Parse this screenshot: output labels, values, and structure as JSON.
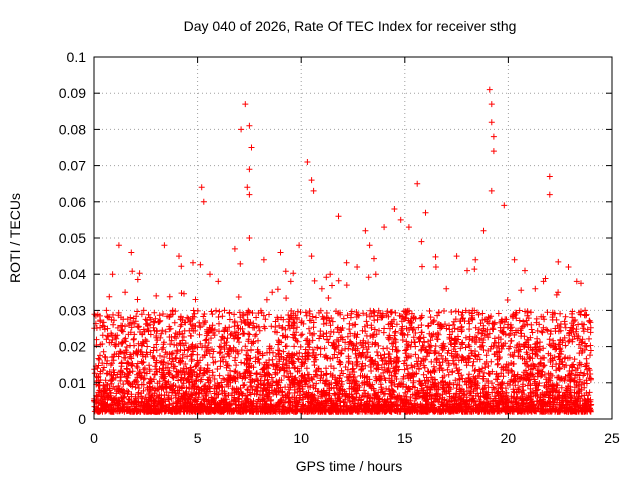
{
  "chart_data": {
    "type": "scatter",
    "title": "Day 040 of 2026, Rate Of TEC Index for receiver sthg",
    "xlabel": "GPS time / hours",
    "ylabel": "ROTI / TECUs",
    "xlim": [
      0,
      25
    ],
    "ylim": [
      0,
      0.1
    ],
    "xticks": [
      "0",
      "5",
      "10",
      "15",
      "20",
      "25"
    ],
    "yticks": [
      "0",
      "0.01",
      "0.02",
      "0.03",
      "0.04",
      "0.05",
      "0.06",
      "0.07",
      "0.08",
      "0.09",
      "0.1"
    ],
    "grid": true,
    "marker": "+",
    "color": "#ff0000",
    "dense_band": {
      "description_free": true,
      "x_range": [
        0,
        24
      ],
      "typical_y_range": [
        0.002,
        0.03
      ]
    },
    "series": [
      {
        "name": "ROTI",
        "x": [
          0.3,
          0.6,
          0.9,
          1.2,
          1.5,
          1.8,
          2.1,
          2.4,
          2.7,
          3.0,
          3.4,
          3.8,
          4.1,
          4.5,
          4.9,
          5.2,
          5.3,
          5.6,
          6.0,
          6.3,
          6.8,
          7.1,
          7.3,
          7.5,
          7.6,
          7.5,
          7.4,
          7.5,
          7.5,
          8.2,
          8.6,
          9.0,
          9.5,
          9.9,
          10.3,
          10.5,
          10.6,
          10.5,
          11.0,
          11.4,
          11.8,
          12.2,
          12.7,
          13.1,
          13.3,
          13.6,
          14.0,
          14.5,
          14.8,
          15.2,
          15.6,
          15.8,
          16.0,
          16.5,
          17.0,
          17.5,
          18.0,
          18.4,
          18.8,
          19.1,
          19.2,
          19.2,
          19.3,
          19.3,
          19.2,
          19.8,
          20.3,
          20.8,
          21.3,
          21.7,
          22.0,
          22.0,
          22.4,
          22.9,
          23.3,
          23.7,
          23.9
        ],
        "y": [
          0.027,
          0.03,
          0.04,
          0.048,
          0.035,
          0.046,
          0.033,
          0.03,
          0.028,
          0.034,
          0.048,
          0.03,
          0.045,
          0.028,
          0.033,
          0.064,
          0.06,
          0.04,
          0.038,
          0.03,
          0.047,
          0.08,
          0.087,
          0.081,
          0.075,
          0.069,
          0.064,
          0.062,
          0.05,
          0.044,
          0.035,
          0.046,
          0.038,
          0.048,
          0.071,
          0.066,
          0.063,
          0.045,
          0.036,
          0.04,
          0.056,
          0.037,
          0.042,
          0.052,
          0.048,
          0.04,
          0.053,
          0.058,
          0.055,
          0.053,
          0.065,
          0.049,
          0.057,
          0.042,
          0.036,
          0.045,
          0.041,
          0.044,
          0.052,
          0.091,
          0.087,
          0.082,
          0.078,
          0.074,
          0.063,
          0.059,
          0.044,
          0.041,
          0.036,
          0.038,
          0.067,
          0.062,
          0.035,
          0.042,
          0.038,
          0.03,
          0.027
        ]
      }
    ]
  }
}
